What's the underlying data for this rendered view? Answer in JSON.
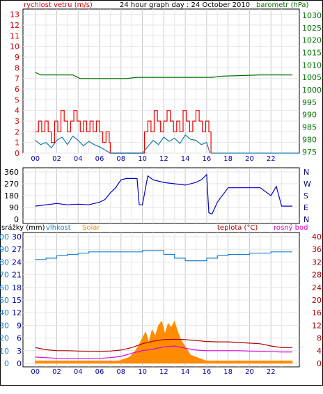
{
  "title": "24 hour graph day : 24 October 2010",
  "colors": {
    "wind_speed": "#dd0000",
    "wind_gust": "#ee0000",
    "wind_avg": "#1a7aa8",
    "barometer": "#007000",
    "direction": "#0000cc",
    "humidity": "#1a80d0",
    "solar": "#ff8c00",
    "temperature": "#b00000",
    "dewpoint": "#dd00dd",
    "grid": "#c8c8c8",
    "axis": "#000000"
  },
  "chart_data": [
    {
      "type": "line",
      "title": "24 hour graph day : 24 October 2010",
      "left_label": "rychlost vetru (m/s)",
      "right_label": "barometr (hPa)",
      "x_ticks": [
        "00",
        "02",
        "04",
        "06",
        "08",
        "10",
        "12",
        "14",
        "16",
        "18",
        "20",
        "22"
      ],
      "y_left_ticks": [
        0,
        1,
        2,
        3,
        4,
        5,
        6,
        7,
        8,
        9,
        10,
        11,
        12,
        13
      ],
      "y_right_ticks": [
        975,
        980,
        985,
        990,
        995,
        1000,
        1005,
        1010,
        1015,
        1020,
        1025,
        1030
      ],
      "ylim_left": [
        0,
        13.5
      ],
      "ylim_right": [
        974.5,
        1032.5
      ],
      "grid": true,
      "series": [
        {
          "name": "barometr",
          "axis": "right",
          "x": [
            0,
            0.5,
            3.5,
            4.2,
            8.5,
            9.5,
            12.5,
            16.5,
            17.5,
            21,
            24
          ],
          "y": [
            1007,
            1006,
            1006,
            1004.5,
            1004.5,
            1005,
            1005,
            1005,
            1005.5,
            1006,
            1006
          ]
        },
        {
          "name": "rychlost vetru - naraz",
          "axis": "left",
          "x": [
            0,
            0.3,
            0.6,
            0.9,
            1.2,
            1.5,
            1.8,
            2.1,
            2.4,
            2.7,
            3.0,
            3.3,
            3.6,
            3.9,
            4.2,
            4.5,
            4.8,
            5.1,
            5.4,
            5.7,
            6.0,
            6.3,
            6.6,
            6.9,
            7.0,
            10.0,
            10.2,
            10.5,
            10.8,
            11.1,
            11.4,
            11.7,
            12.0,
            12.3,
            12.6,
            12.9,
            13.2,
            13.5,
            13.8,
            14.1,
            14.4,
            14.7,
            15.0,
            15.3,
            15.6,
            15.9,
            16.2,
            16.4
          ],
          "y": [
            2,
            3,
            2,
            3,
            2,
            1,
            3,
            2,
            4,
            3,
            2,
            3,
            4,
            3,
            2,
            3,
            2,
            3,
            2,
            3,
            2,
            1,
            2,
            1,
            0,
            0,
            2,
            3,
            2,
            4,
            3,
            2,
            3,
            4,
            3,
            2,
            3,
            2,
            4,
            3,
            2,
            3,
            4,
            3,
            2,
            3,
            2,
            0
          ]
        },
        {
          "name": "rychlost vetru - prumer",
          "axis": "left",
          "x": [
            0,
            0.5,
            1.0,
            1.5,
            2.0,
            2.5,
            3.0,
            3.5,
            4.0,
            4.5,
            5.0,
            5.5,
            6.0,
            6.5,
            7.0,
            10.0,
            10.5,
            11.0,
            11.5,
            12.0,
            12.5,
            13.0,
            13.5,
            14.0,
            14.5,
            15.0,
            15.5,
            16.0,
            16.3
          ],
          "y": [
            1.2,
            0.8,
            1.0,
            0.5,
            1.2,
            1.5,
            0.8,
            1.6,
            1.2,
            0.7,
            1.1,
            0.8,
            0.6,
            0.3,
            0,
            0,
            0.6,
            1.2,
            0.8,
            1.5,
            1.1,
            1.4,
            0.9,
            1.7,
            1.3,
            1.2,
            0.8,
            1.0,
            0
          ]
        }
      ]
    },
    {
      "type": "line",
      "y_ticks": [
        0,
        90,
        180,
        270,
        360
      ],
      "direction_labels": [
        "N",
        "W",
        "S",
        "E",
        "N"
      ],
      "ylim": [
        0,
        360
      ],
      "grid": true,
      "series": [
        {
          "name": "smer vetru",
          "x": [
            0,
            1,
            2,
            3,
            4,
            5,
            6,
            6.5,
            7.0,
            7.5,
            8.0,
            8.5,
            9.0,
            9.5,
            9.7,
            10.0,
            10.5,
            11,
            12,
            13,
            14,
            15,
            15.5,
            16.0,
            16.2,
            16.5,
            17,
            18,
            19,
            20,
            21,
            22,
            22.5,
            23,
            24
          ],
          "y": [
            100,
            110,
            120,
            110,
            115,
            110,
            130,
            150,
            200,
            240,
            300,
            310,
            310,
            310,
            110,
            110,
            330,
            300,
            280,
            270,
            260,
            280,
            300,
            340,
            50,
            40,
            130,
            240,
            240,
            240,
            240,
            180,
            250,
            100,
            100
          ]
        }
      ]
    },
    {
      "type": "line",
      "labels": [
        "srážky (mm)",
        "vlhkost",
        "Solar",
        "teplota (°C)",
        "rosný bod"
      ],
      "y_precip_ticks": [
        0,
        3,
        6,
        9,
        12,
        15,
        18,
        21,
        24,
        27,
        30
      ],
      "y_humidity_ticks": [
        0,
        10,
        20,
        30,
        40,
        50,
        60,
        70,
        80,
        90,
        100
      ],
      "y_temp_ticks": [
        0,
        4,
        8,
        12,
        16,
        20,
        24,
        28,
        32,
        36,
        40
      ],
      "ylim": [
        0,
        100
      ],
      "grid": true,
      "series": [
        {
          "name": "vlhkost",
          "axis": "humidity",
          "x": [
            0,
            1,
            2,
            3,
            4,
            5,
            6,
            7,
            8,
            9,
            10,
            11,
            12,
            13,
            14,
            15,
            16,
            17,
            18,
            19,
            20,
            21,
            22,
            23,
            24
          ],
          "y": [
            82,
            83,
            85,
            86,
            87,
            88,
            88,
            88,
            88,
            88,
            89,
            89,
            86,
            83,
            81,
            81,
            83,
            85,
            86,
            86,
            87,
            87,
            88,
            88,
            88
          ]
        },
        {
          "name": "teplota",
          "axis": "temperature",
          "x": [
            0,
            1,
            2,
            3,
            4,
            5,
            6,
            7,
            8,
            9,
            10,
            11,
            12,
            13,
            14,
            15,
            16,
            17,
            18,
            19,
            20,
            21,
            22,
            23,
            24
          ],
          "y": [
            5.0,
            4.3,
            4.0,
            4.0,
            3.9,
            3.8,
            3.8,
            3.9,
            4.2,
            5.0,
            6.2,
            7.0,
            7.5,
            7.6,
            7.5,
            7.2,
            6.9,
            6.8,
            6.8,
            6.6,
            6.4,
            6.2,
            5.5,
            5.0,
            5.0
          ]
        },
        {
          "name": "rosný bod",
          "axis": "temperature",
          "x": [
            0,
            1,
            2,
            3,
            4,
            5,
            6,
            7,
            8,
            9,
            10,
            11,
            12,
            13,
            14,
            15,
            16,
            17,
            18,
            19,
            20,
            21,
            22,
            23,
            24
          ],
          "y": [
            2.0,
            1.8,
            1.6,
            1.5,
            1.5,
            1.5,
            1.6,
            1.8,
            2.2,
            3.2,
            4.0,
            4.5,
            5.2,
            5.5,
            4.8,
            4.2,
            4.0,
            4.0,
            4.0,
            4.0,
            3.9,
            3.8,
            3.7,
            3.6,
            3.6
          ]
        },
        {
          "name": "Solar",
          "axis": "precip",
          "x": [
            0,
            7.8,
            8.3,
            8.8,
            9.2,
            9.6,
            10.0,
            10.3,
            10.6,
            10.9,
            11.2,
            11.5,
            11.8,
            12.1,
            12.4,
            12.7,
            13.0,
            13.3,
            13.6,
            14.0,
            14.5,
            15.0,
            15.5,
            16.0,
            24
          ],
          "y": [
            0.6,
            0.6,
            1.0,
            1.5,
            2.5,
            4.0,
            6.0,
            7.5,
            5.0,
            8.0,
            6.5,
            9.0,
            10.0,
            7.0,
            9.5,
            8.5,
            10.0,
            7.5,
            5.5,
            4.0,
            2.0,
            1.5,
            1.0,
            0.6,
            0.6
          ]
        }
      ]
    }
  ]
}
